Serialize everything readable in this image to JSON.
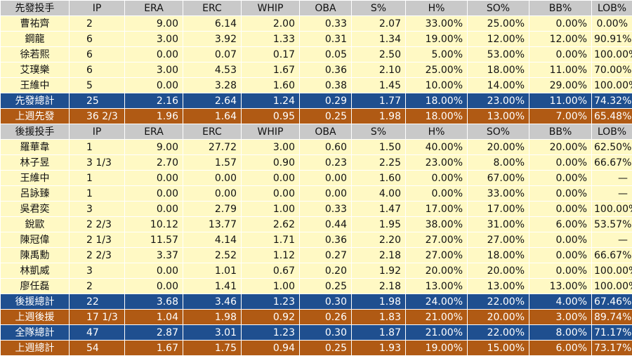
{
  "columns": [
    "IP",
    "ERA",
    "ERC",
    "WHIP",
    "OBA",
    "S%",
    "H%",
    "SO%",
    "BB%",
    "LOB%"
  ],
  "sections": [
    {
      "header": "先發投手",
      "rows": [
        {
          "name": "曹祐齊",
          "values": [
            "2",
            "9.00",
            "6.14",
            "2.00",
            "0.33",
            "2.07",
            "33.00%",
            "25.00%",
            "0.00%",
            "0.00%"
          ]
        },
        {
          "name": "鋼龍",
          "values": [
            "6",
            "3.00",
            "3.92",
            "1.33",
            "0.31",
            "1.34",
            "19.00%",
            "12.00%",
            "12.00%",
            "90.91%"
          ]
        },
        {
          "name": "徐若熙",
          "values": [
            "6",
            "0.00",
            "0.07",
            "0.17",
            "0.05",
            "2.50",
            "5.00%",
            "53.00%",
            "0.00%",
            "100.00%"
          ]
        },
        {
          "name": "艾璞樂",
          "values": [
            "6",
            "3.00",
            "4.53",
            "1.67",
            "0.36",
            "2.10",
            "25.00%",
            "18.00%",
            "11.00%",
            "70.00%"
          ]
        },
        {
          "name": "王維中",
          "values": [
            "5",
            "0.00",
            "3.28",
            "1.60",
            "0.38",
            "1.45",
            "10.00%",
            "14.00%",
            "29.00%",
            "100.00%"
          ]
        }
      ],
      "summaries": [
        {
          "type": "total",
          "name": "先發總計",
          "values": [
            "25",
            "2.16",
            "2.64",
            "1.24",
            "0.29",
            "1.77",
            "18.00%",
            "23.00%",
            "11.00%",
            "74.32%"
          ]
        },
        {
          "type": "lastweek",
          "name": "上週先發",
          "values": [
            "36 2/3",
            "1.96",
            "1.64",
            "0.95",
            "0.25",
            "1.98",
            "18.00%",
            "13.00%",
            "7.00%",
            "65.48%"
          ]
        }
      ]
    },
    {
      "header": "後援投手",
      "rows": [
        {
          "name": "羅華韋",
          "values": [
            "1",
            "9.00",
            "27.72",
            "3.00",
            "0.60",
            "1.50",
            "40.00%",
            "20.00%",
            "20.00%",
            "62.50%"
          ]
        },
        {
          "name": "林子昱",
          "values": [
            "3 1/3",
            "2.70",
            "1.57",
            "0.90",
            "0.23",
            "2.25",
            "23.00%",
            "8.00%",
            "0.00%",
            "66.67%"
          ]
        },
        {
          "name": "王維中",
          "values": [
            "1",
            "0.00",
            "0.00",
            "0.00",
            "0.00",
            "1.60",
            "0.00%",
            "67.00%",
            "0.00%",
            "—"
          ]
        },
        {
          "name": "呂詠臻",
          "values": [
            "1",
            "0.00",
            "0.00",
            "0.00",
            "0.00",
            "4.00",
            "0.00%",
            "33.00%",
            "0.00%",
            "—"
          ]
        },
        {
          "name": "吳君奕",
          "values": [
            "3",
            "0.00",
            "2.79",
            "1.00",
            "0.33",
            "1.47",
            "17.00%",
            "17.00%",
            "0.00%",
            "100.00%"
          ]
        },
        {
          "name": "銳歐",
          "values": [
            "2 2/3",
            "10.12",
            "13.77",
            "2.62",
            "0.44",
            "1.95",
            "38.00%",
            "31.00%",
            "6.00%",
            "53.57%"
          ]
        },
        {
          "name": "陳冠偉",
          "values": [
            "2 1/3",
            "11.57",
            "4.14",
            "1.71",
            "0.36",
            "2.20",
            "27.00%",
            "27.00%",
            "0.00%",
            "—"
          ]
        },
        {
          "name": "陳禹勳",
          "values": [
            "2 2/3",
            "3.37",
            "2.52",
            "1.12",
            "0.27",
            "2.18",
            "27.00%",
            "18.00%",
            "0.00%",
            "66.67%"
          ]
        },
        {
          "name": "林凱威",
          "values": [
            "3",
            "0.00",
            "1.01",
            "0.67",
            "0.20",
            "1.92",
            "20.00%",
            "20.00%",
            "0.00%",
            "100.00%"
          ]
        },
        {
          "name": "廖任磊",
          "values": [
            "2",
            "0.00",
            "1.41",
            "1.00",
            "0.25",
            "2.18",
            "13.00%",
            "13.00%",
            "13.00%",
            "100.00%"
          ]
        }
      ],
      "summaries": [
        {
          "type": "total",
          "name": "後援總計",
          "values": [
            "22",
            "3.68",
            "3.46",
            "1.23",
            "0.30",
            "1.98",
            "24.00%",
            "22.00%",
            "4.00%",
            "67.46%"
          ]
        },
        {
          "type": "lastweek",
          "name": "上週後援",
          "values": [
            "17 1/3",
            "1.04",
            "1.98",
            "0.92",
            "0.26",
            "1.83",
            "21.00%",
            "20.00%",
            "3.00%",
            "89.74%"
          ]
        },
        {
          "type": "total",
          "name": "全隊總計",
          "values": [
            "47",
            "2.87",
            "3.01",
            "1.23",
            "0.30",
            "1.87",
            "21.00%",
            "22.00%",
            "8.00%",
            "71.17%"
          ]
        },
        {
          "type": "lastweek",
          "name": "上週總計",
          "values": [
            "54",
            "1.67",
            "1.75",
            "0.94",
            "0.25",
            "1.93",
            "19.00%",
            "15.00%",
            "6.00%",
            "73.17%"
          ]
        }
      ]
    }
  ]
}
